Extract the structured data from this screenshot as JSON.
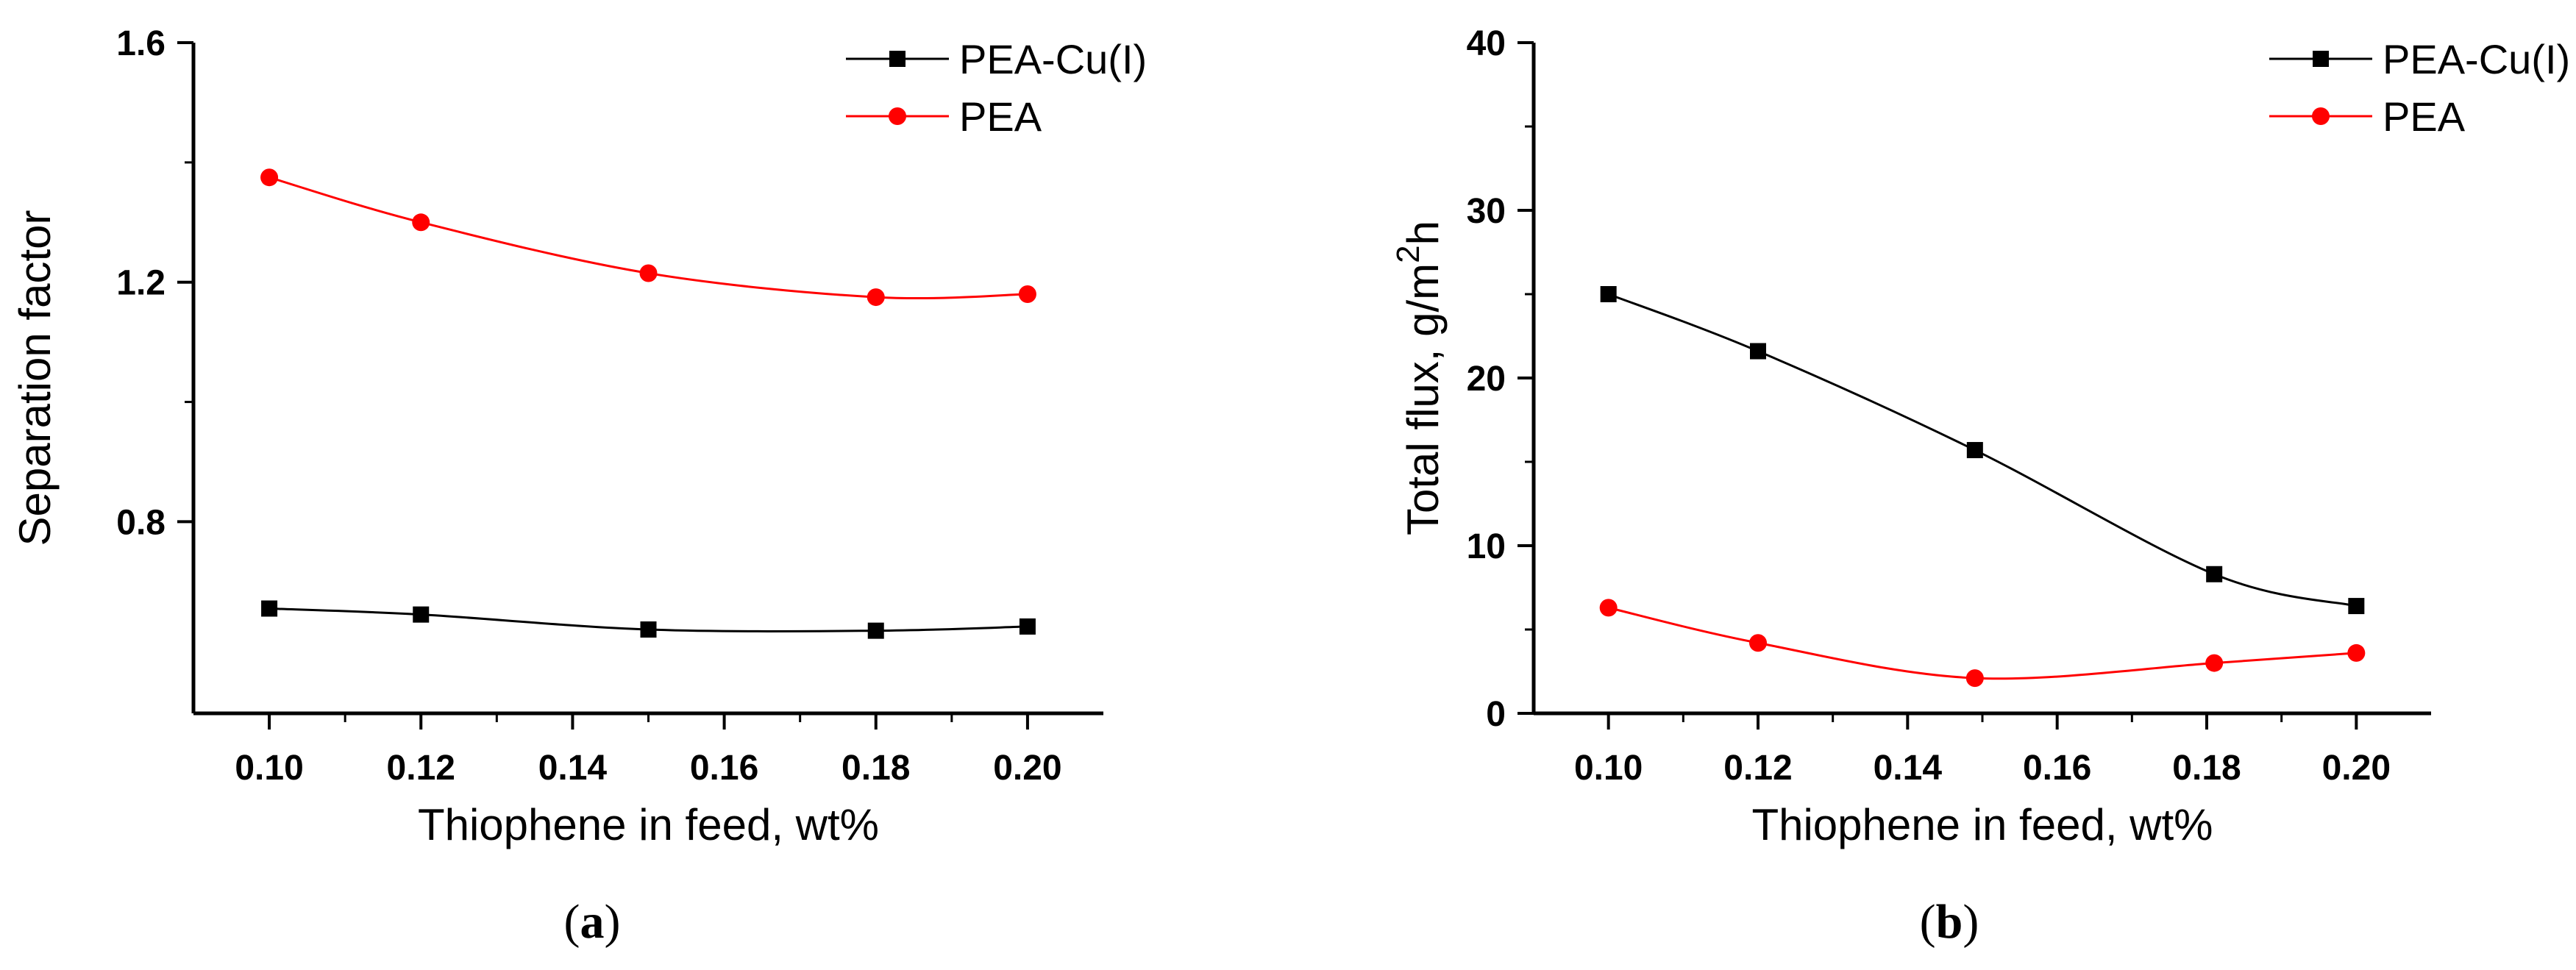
{
  "chart_data": [
    {
      "type": "line",
      "panel_label": "a",
      "xlabel": "Thiophene in feed, wt%",
      "ylabel": "Separation factor",
      "xlim": [
        0.09,
        0.21
      ],
      "ylim": [
        0.48,
        1.6
      ],
      "x_ticks": [
        0.1,
        0.12,
        0.14,
        0.16,
        0.18,
        0.2
      ],
      "x_tick_labels": [
        "0.10",
        "0.12",
        "0.14",
        "0.16",
        "0.18",
        "0.20"
      ],
      "y_ticks": [
        0.8,
        1.2,
        1.6
      ],
      "y_tick_labels": [
        "0.8",
        "1.2",
        "1.6"
      ],
      "legend_position": "top-right",
      "series": [
        {
          "name": "PEA-Cu(I)",
          "color": "#000000",
          "marker": "square",
          "x": [
            0.1,
            0.12,
            0.15,
            0.18,
            0.2
          ],
          "y": [
            0.655,
            0.645,
            0.62,
            0.618,
            0.625
          ]
        },
        {
          "name": "PEA",
          "color": "#ff0000",
          "marker": "circle",
          "x": [
            0.1,
            0.12,
            0.15,
            0.18,
            0.2
          ],
          "y": [
            1.375,
            1.3,
            1.215,
            1.175,
            1.18
          ]
        }
      ]
    },
    {
      "type": "line",
      "panel_label": "b",
      "xlabel": "Thiophene in feed, wt%",
      "ylabel_prefix": "Total flux, g/m",
      "ylabel_sup": "2",
      "ylabel_suffix": "h",
      "xlim": [
        0.09,
        0.21
      ],
      "ylim": [
        0,
        40
      ],
      "x_ticks": [
        0.1,
        0.12,
        0.14,
        0.16,
        0.18,
        0.2
      ],
      "x_tick_labels": [
        "0.10",
        "0.12",
        "0.14",
        "0.16",
        "0.18",
        "0.20"
      ],
      "y_ticks": [
        0,
        10,
        20,
        30,
        40
      ],
      "y_tick_labels": [
        "0",
        "10",
        "20",
        "30",
        "40"
      ],
      "legend_position": "top-right",
      "series": [
        {
          "name": "PEA-Cu(I)",
          "color": "#000000",
          "marker": "square",
          "x": [
            0.1,
            0.12,
            0.149,
            0.181,
            0.2
          ],
          "y": [
            25.0,
            21.6,
            15.7,
            8.3,
            6.4
          ]
        },
        {
          "name": "PEA",
          "color": "#ff0000",
          "marker": "circle",
          "x": [
            0.1,
            0.12,
            0.149,
            0.181,
            0.2
          ],
          "y": [
            6.3,
            4.2,
            2.1,
            3.0,
            3.6
          ]
        }
      ]
    }
  ]
}
